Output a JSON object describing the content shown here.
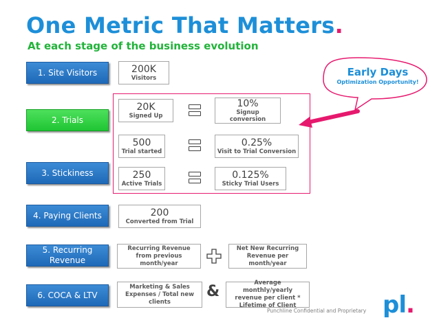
{
  "header": {
    "title": "One Metric That Matters",
    "title_dot": ".",
    "subtitle": "At each stage of the business evolution"
  },
  "stages": [
    {
      "label": "1. Site Visitors"
    },
    {
      "label": "2. Trials"
    },
    {
      "label": "3. Stickiness"
    },
    {
      "label": "4. Paying Clients"
    },
    {
      "label": "5. Recurring Revenue"
    },
    {
      "label": "6. COCA & LTV"
    }
  ],
  "metrics": {
    "visitors": {
      "value": "200K",
      "label": "Visitors"
    },
    "signed_up": {
      "value": "20K",
      "label": "Signed Up"
    },
    "signup_conversion": {
      "value": "10%",
      "label": "Signup conversion"
    },
    "trial_started": {
      "value": "500",
      "label": "Trial started"
    },
    "visit_trial_conversion": {
      "value": "0.25%",
      "label": "Visit to Trial Conversion"
    },
    "active_trials": {
      "value": "250",
      "label": "Active Trials"
    },
    "sticky_trial_users": {
      "value": "0.125%",
      "label": "Sticky Trial Users"
    },
    "converted": {
      "value": "200",
      "label": "Converted from Trial"
    },
    "recurring_revenue": {
      "label": "Recurring Revenue from previous month/year"
    },
    "net_new_revenue": {
      "label": "Net New Recurring Revenue per month/year"
    },
    "marketing_expenses": {
      "label": "Marketing & Sales Expenses / Total new clients"
    },
    "avg_revenue": {
      "label": "Average monthly/yearly revenue per client * Lifetime of Client"
    }
  },
  "operators": {
    "amp": "&"
  },
  "callout": {
    "title": "Early Days",
    "subtitle": "Optimization Opportunity!",
    "accent": "#e6196e"
  },
  "footer": {
    "text": "Punchline Confidential and Proprietary",
    "logo": "pl",
    "logo_dot": "."
  },
  "colors": {
    "brand_blue": "#1d8fd8",
    "subtitle_green": "#22b33a",
    "stage_blue": "#2a78c8",
    "stage_active_green": "#2fd044",
    "accent_pink": "#e6196e"
  },
  "icons": {
    "equals": "equals-icon",
    "plus": "plus-icon",
    "arrow": "arrow-icon",
    "bubble": "speech-bubble-icon"
  }
}
